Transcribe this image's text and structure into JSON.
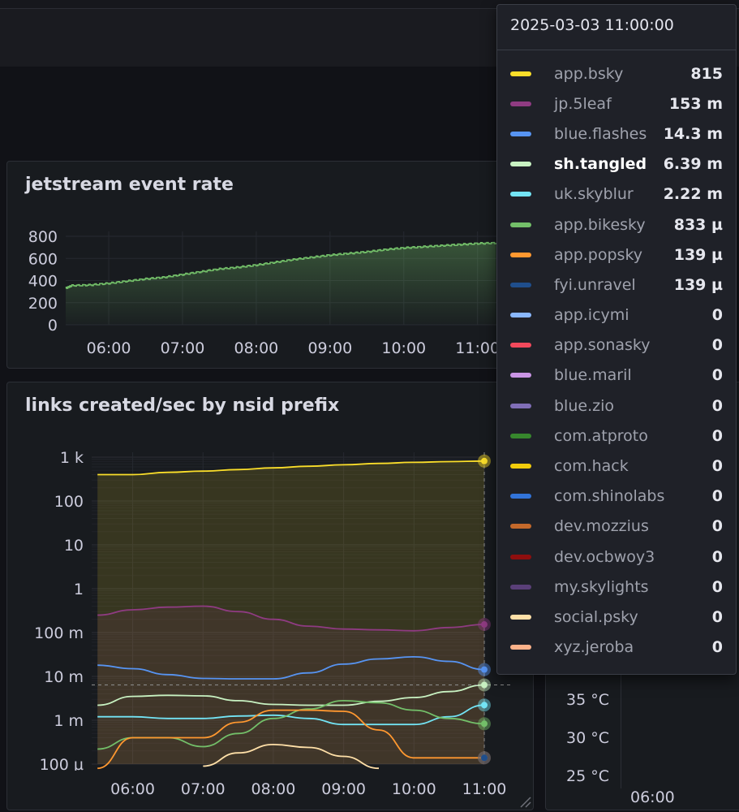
{
  "panels": {
    "jetstream": {
      "title": "jetstream event rate"
    },
    "links": {
      "title": "links created/sec by nsid prefix"
    },
    "temperature": {
      "y_ticks": [
        "35 °C",
        "30 °C",
        "25 °C"
      ],
      "x_ticks": [
        "06:00"
      ]
    }
  },
  "chart_data": [
    {
      "type": "area",
      "title": "jetstream event rate",
      "xlabel": "",
      "ylabel": "",
      "ylim": [
        0,
        800
      ],
      "y_ticks": [
        "800",
        "600",
        "400",
        "200",
        "0"
      ],
      "x_ticks": [
        "06:00",
        "07:00",
        "08:00",
        "09:00",
        "10:00",
        "11:00"
      ],
      "color": "#73bf69",
      "x": [
        "05:25",
        "05:30",
        "05:45",
        "06:00",
        "06:15",
        "06:30",
        "06:45",
        "07:00",
        "07:15",
        "07:30",
        "07:45",
        "08:00",
        "08:15",
        "08:30",
        "08:45",
        "09:00",
        "09:15",
        "09:30",
        "09:45",
        "10:00",
        "10:15",
        "10:30",
        "10:45",
        "11:00",
        "11:15"
      ],
      "values": [
        330,
        355,
        360,
        375,
        395,
        415,
        430,
        455,
        480,
        505,
        520,
        540,
        565,
        590,
        610,
        630,
        645,
        660,
        680,
        695,
        705,
        715,
        725,
        735,
        740
      ],
      "grid": true,
      "legend": "none"
    },
    {
      "type": "line",
      "title": "links created/sec by nsid prefix",
      "xlabel": "",
      "ylabel": "",
      "yscale": "log",
      "ylim": [
        0.0001,
        1000
      ],
      "y_ticks": [
        "1 k",
        "100",
        "10",
        "1",
        "100 m",
        "10 m",
        "1 m",
        "100 µ"
      ],
      "x_ticks": [
        "06:00",
        "07:00",
        "08:00",
        "09:00",
        "10:00",
        "11:00"
      ],
      "x": [
        "05:30",
        "06:00",
        "06:30",
        "07:00",
        "07:30",
        "08:00",
        "08:30",
        "09:00",
        "09:30",
        "10:00",
        "10:30",
        "11:00"
      ],
      "series": [
        {
          "name": "app.bsky",
          "color": "#fade2a",
          "values": [
            400,
            400,
            450,
            480,
            520,
            570,
            620,
            670,
            720,
            760,
            790,
            815
          ]
        },
        {
          "name": "jp.5leaf",
          "color": "#8f3b82",
          "values": [
            0.25,
            0.33,
            0.38,
            0.4,
            0.3,
            0.2,
            0.14,
            0.12,
            0.115,
            0.11,
            0.13,
            0.153
          ]
        },
        {
          "name": "blue.flashes",
          "color": "#5794f2",
          "values": [
            0.018,
            0.015,
            0.011,
            0.009,
            0.0088,
            0.0088,
            0.012,
            0.019,
            0.025,
            0.028,
            0.022,
            0.0143
          ]
        },
        {
          "name": "sh.tangled",
          "color": "#c8f2c2",
          "values": [
            0.0022,
            0.0035,
            0.0037,
            0.0036,
            0.0028,
            0.0023,
            0.0022,
            0.0022,
            0.0027,
            0.0033,
            0.0045,
            0.00639
          ]
        },
        {
          "name": "uk.skyblur",
          "color": "#73e4f5",
          "values": [
            0.0012,
            0.0012,
            0.0011,
            0.0011,
            0.00125,
            0.0013,
            0.0011,
            0.0008,
            0.0008,
            0.0008,
            0.0012,
            0.00222
          ]
        },
        {
          "name": "app.bikesky",
          "color": "#73bf69",
          "values": [
            0.00022,
            0.0004,
            0.0004,
            0.00025,
            0.0005,
            0.0011,
            0.0018,
            0.0028,
            0.0025,
            0.0017,
            0.0011,
            0.000833
          ]
        },
        {
          "name": "app.popsky",
          "color": "#ff9830",
          "values": [
            8e-05,
            0.0004,
            0.0004,
            0.0004,
            0.0009,
            0.0017,
            0.0017,
            0.0016,
            0.0006,
            0.000139,
            0.000139,
            0.000139
          ]
        },
        {
          "name": "social.psky",
          "color": "#ffe0a8",
          "values": [
            null,
            null,
            null,
            9e-05,
            0.00018,
            0.00028,
            0.00024,
            0.00015,
            8e-05,
            null,
            null,
            null
          ]
        },
        {
          "name": "fyi.unravel",
          "color": "#1f4e8c",
          "values": [
            null,
            null,
            null,
            null,
            null,
            null,
            null,
            null,
            null,
            null,
            null,
            0.000139
          ]
        }
      ],
      "grid": true,
      "legend": "tooltip"
    }
  ],
  "tooltip": {
    "time": "2025-03-03 11:00:00",
    "rows": [
      {
        "name": "app.bsky",
        "value": "815",
        "color": "#fade2a"
      },
      {
        "name": "jp.5leaf",
        "value": "153 m",
        "color": "#8f3b82"
      },
      {
        "name": "blue.flashes",
        "value": "14.3 m",
        "color": "#5794f2"
      },
      {
        "name": "sh.tangled",
        "value": "6.39 m",
        "color": "#c8f2c2",
        "highlight": true
      },
      {
        "name": "uk.skyblur",
        "value": "2.22 m",
        "color": "#73e4f5"
      },
      {
        "name": "app.bikesky",
        "value": "833 µ",
        "color": "#73bf69"
      },
      {
        "name": "app.popsky",
        "value": "139 µ",
        "color": "#ff9830"
      },
      {
        "name": "fyi.unravel",
        "value": "139 µ",
        "color": "#1f4e8c"
      },
      {
        "name": "app.icymi",
        "value": "0",
        "color": "#8ab8ff"
      },
      {
        "name": "app.sonasky",
        "value": "0",
        "color": "#f2495c"
      },
      {
        "name": "blue.maril",
        "value": "0",
        "color": "#ca95e5"
      },
      {
        "name": "blue.zio",
        "value": "0",
        "color": "#806eb7"
      },
      {
        "name": "com.atproto",
        "value": "0",
        "color": "#37872d"
      },
      {
        "name": "com.hack",
        "value": "0",
        "color": "#f2cc0c"
      },
      {
        "name": "com.shinolabs",
        "value": "0",
        "color": "#3274d9"
      },
      {
        "name": "dev.mozzius",
        "value": "0",
        "color": "#c4692b"
      },
      {
        "name": "dev.ocbwoy3",
        "value": "0",
        "color": "#8e0e0e"
      },
      {
        "name": "my.skylights",
        "value": "0",
        "color": "#5a3f78"
      },
      {
        "name": "social.psky",
        "value": "0",
        "color": "#ffe0a8"
      },
      {
        "name": "xyz.jeroba",
        "value": "0",
        "color": "#fcb28a"
      }
    ]
  }
}
